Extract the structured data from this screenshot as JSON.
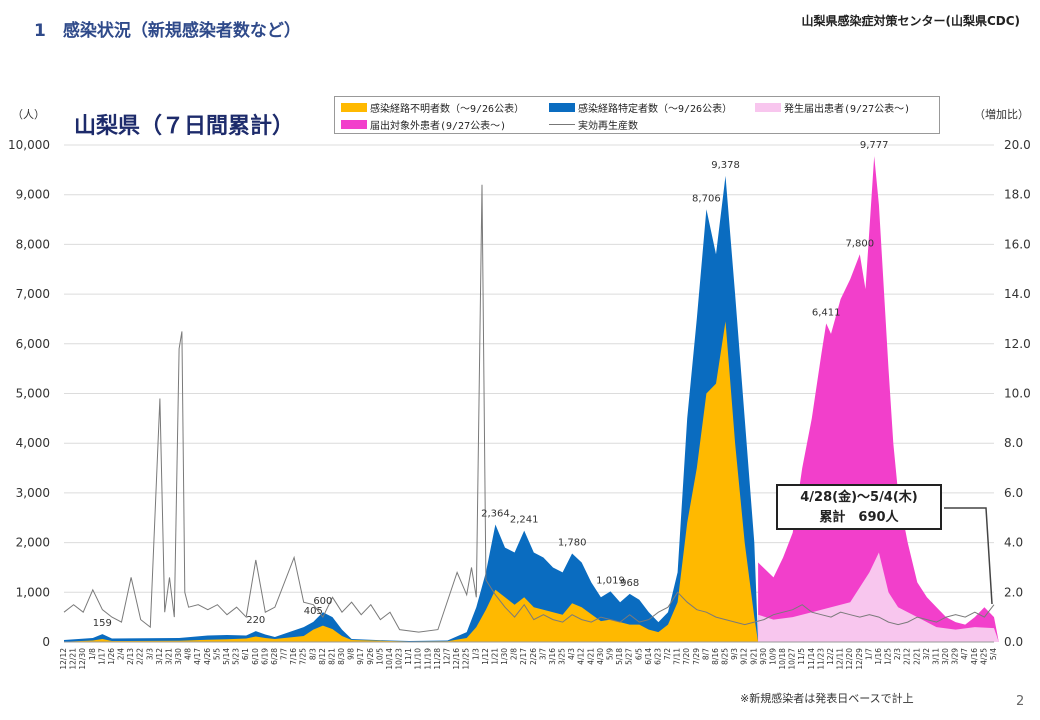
{
  "header": {
    "slide_title": "1　感染状況（新規感染者数など）",
    "organization": "山梨県感染症対策センター(山梨県CDC)",
    "page_number": "2",
    "footnote": "※新規感染者は発表日ベースで計上"
  },
  "callout": {
    "line1": "4/28(金)～5/4(木)",
    "line2": "累計　690人"
  },
  "colors": {
    "unknown": "#ffb900",
    "known": "#0a6cc0",
    "report": "#f8c6ee",
    "exempt": "#f23fcb",
    "rt": "#7a7a7a"
  },
  "chart_data": {
    "type": "area",
    "title": "山梨県（７日間累計）",
    "ylabel": "（人）",
    "y2label": "（増加比）",
    "ylim": [
      0,
      10000
    ],
    "yticks": [
      0,
      1000,
      2000,
      3000,
      4000,
      5000,
      6000,
      7000,
      8000,
      9000,
      10000
    ],
    "ytick_labels": [
      "0",
      "1,000",
      "2,000",
      "3,000",
      "4,000",
      "5,000",
      "6,000",
      "7,000",
      "8,000",
      "9,000",
      "10,000"
    ],
    "y2lim": [
      0,
      20
    ],
    "y2ticks": [
      0,
      2,
      4,
      6,
      8,
      10,
      12,
      14,
      16,
      18,
      20
    ],
    "y2tick_labels": [
      "0.0",
      "2.0",
      "4.0",
      "6.0",
      "8.0",
      "10.0",
      "12.0",
      "14.0",
      "16.0",
      "18.0",
      "20.0"
    ],
    "grid": true,
    "legend_position": "top",
    "x_labels": [
      "12/12",
      "12/21",
      "12/30",
      "1/8",
      "1/17",
      "1/26",
      "2/4",
      "2/13",
      "2/22",
      "3/3",
      "3/12",
      "3/21",
      "3/30",
      "4/8",
      "4/17",
      "4/26",
      "5/5",
      "5/14",
      "5/23",
      "6/1",
      "6/10",
      "6/19",
      "6/28",
      "7/7",
      "7/16",
      "7/25",
      "8/3",
      "8/12",
      "8/21",
      "8/30",
      "9/8",
      "9/17",
      "9/26",
      "10/5",
      "10/14",
      "10/23",
      "11/1",
      "11/10",
      "11/19",
      "11/28",
      "12/7",
      "12/16",
      "12/25",
      "1/3",
      "1/12",
      "1/21",
      "1/30",
      "2/8",
      "2/17",
      "2/26",
      "3/7",
      "3/16",
      "3/25",
      "4/3",
      "4/12",
      "4/21",
      "4/30",
      "5/9",
      "5/18",
      "5/27",
      "6/5",
      "6/14",
      "6/23",
      "7/2",
      "7/11",
      "7/20",
      "7/29",
      "8/7",
      "8/16",
      "8/25",
      "9/3",
      "9/12",
      "9/21",
      "9/30",
      "10/9",
      "10/18",
      "10/27",
      "11/5",
      "11/14",
      "11/23",
      "12/2",
      "12/11",
      "12/20",
      "12/29",
      "1/7",
      "1/16",
      "1/25",
      "2/3",
      "2/12",
      "2/21",
      "3/2",
      "3/11",
      "3/20",
      "3/29",
      "4/7",
      "4/16",
      "4/25",
      "5/4"
    ],
    "series": [
      {
        "name": "感染経路不明者数（～9/26公表）",
        "points": [
          [
            0,
            5
          ],
          [
            3,
            30
          ],
          [
            4,
            60
          ],
          [
            5,
            20
          ],
          [
            12,
            25
          ],
          [
            15,
            45
          ],
          [
            17,
            55
          ],
          [
            19,
            70
          ],
          [
            20,
            110
          ],
          [
            21,
            80
          ],
          [
            22,
            60
          ],
          [
            25,
            120
          ],
          [
            26,
            250
          ],
          [
            27,
            330
          ],
          [
            28,
            260
          ],
          [
            29,
            120
          ],
          [
            30,
            40
          ],
          [
            34,
            20
          ],
          [
            36,
            10
          ],
          [
            40,
            15
          ],
          [
            42,
            80
          ],
          [
            43,
            300
          ],
          [
            44,
            650
          ],
          [
            45,
            1050
          ],
          [
            46,
            900
          ],
          [
            47,
            750
          ],
          [
            48,
            900
          ],
          [
            49,
            700
          ],
          [
            50,
            650
          ],
          [
            51,
            600
          ],
          [
            52,
            550
          ],
          [
            53,
            780
          ],
          [
            54,
            700
          ],
          [
            55,
            560
          ],
          [
            56,
            420
          ],
          [
            57,
            450
          ],
          [
            58,
            400
          ],
          [
            59,
            350
          ],
          [
            60,
            350
          ],
          [
            61,
            250
          ],
          [
            62,
            200
          ],
          [
            63,
            350
          ],
          [
            64,
            800
          ],
          [
            65,
            2400
          ],
          [
            66,
            3500
          ],
          [
            67,
            5000
          ],
          [
            68,
            5200
          ],
          [
            69,
            6450
          ],
          [
            70,
            4000
          ],
          [
            71,
            2000
          ],
          [
            72,
            500
          ],
          [
            72.4,
            0
          ]
        ]
      },
      {
        "name": "感染経路特定者数（～9/26公表）",
        "points": [
          [
            0,
            40
          ],
          [
            3,
            80
          ],
          [
            4,
            159
          ],
          [
            5,
            70
          ],
          [
            12,
            80
          ],
          [
            15,
            130
          ],
          [
            17,
            140
          ],
          [
            19,
            130
          ],
          [
            20,
            220
          ],
          [
            21,
            150
          ],
          [
            22,
            100
          ],
          [
            25,
            300
          ],
          [
            26,
            405
          ],
          [
            27,
            600
          ],
          [
            28,
            500
          ],
          [
            29,
            250
          ],
          [
            30,
            60
          ],
          [
            34,
            30
          ],
          [
            36,
            20
          ],
          [
            40,
            30
          ],
          [
            42,
            200
          ],
          [
            43,
            700
          ],
          [
            44,
            1400
          ],
          [
            45,
            2364
          ],
          [
            46,
            1900
          ],
          [
            47,
            1800
          ],
          [
            48,
            2241
          ],
          [
            49,
            1800
          ],
          [
            50,
            1700
          ],
          [
            51,
            1500
          ],
          [
            52,
            1400
          ],
          [
            53,
            1780
          ],
          [
            54,
            1600
          ],
          [
            55,
            1200
          ],
          [
            56,
            900
          ],
          [
            57,
            1019
          ],
          [
            58,
            800
          ],
          [
            59,
            968
          ],
          [
            60,
            850
          ],
          [
            61,
            600
          ],
          [
            62,
            400
          ],
          [
            63,
            600
          ],
          [
            64,
            1400
          ],
          [
            65,
            4500
          ],
          [
            66,
            6500
          ],
          [
            67,
            8706
          ],
          [
            68,
            7800
          ],
          [
            69,
            9378
          ],
          [
            70,
            7000
          ],
          [
            71,
            4500
          ],
          [
            72,
            2000
          ],
          [
            72.4,
            0
          ]
        ]
      },
      {
        "name": "発生届出患者(9/27公表～)",
        "points": [
          [
            72.4,
            0
          ],
          [
            72.4,
            550
          ],
          [
            74,
            450
          ],
          [
            76,
            500
          ],
          [
            78,
            600
          ],
          [
            80,
            700
          ],
          [
            82,
            800
          ],
          [
            84,
            1400
          ],
          [
            85,
            1800
          ],
          [
            86,
            1000
          ],
          [
            87,
            700
          ],
          [
            89,
            500
          ],
          [
            91,
            300
          ],
          [
            93,
            250
          ],
          [
            95,
            300
          ],
          [
            97,
            280
          ],
          [
            97.5,
            0
          ]
        ]
      },
      {
        "name": "届出対象外患者(9/27公表～)",
        "points": [
          [
            72.4,
            0
          ],
          [
            72.4,
            1600
          ],
          [
            74,
            1300
          ],
          [
            75,
            1700
          ],
          [
            76,
            2200
          ],
          [
            77,
            3500
          ],
          [
            78,
            4500
          ],
          [
            79,
            5800
          ],
          [
            79.5,
            6411
          ],
          [
            80,
            6200
          ],
          [
            81,
            6900
          ],
          [
            82,
            7300
          ],
          [
            83,
            7800
          ],
          [
            83.6,
            7100
          ],
          [
            84.5,
            9777
          ],
          [
            85,
            8800
          ],
          [
            86,
            5500
          ],
          [
            86.5,
            4000
          ],
          [
            87,
            3000
          ],
          [
            88,
            2000
          ],
          [
            89,
            1200
          ],
          [
            90,
            900
          ],
          [
            91,
            700
          ],
          [
            92,
            500
          ],
          [
            93,
            400
          ],
          [
            94,
            350
          ],
          [
            95,
            500
          ],
          [
            96,
            700
          ],
          [
            97,
            500
          ],
          [
            97.5,
            0
          ]
        ]
      },
      {
        "name": "実効再生産数",
        "points": [
          [
            0,
            1.2
          ],
          [
            1,
            1.5
          ],
          [
            2,
            1.2
          ],
          [
            3,
            2.1
          ],
          [
            4,
            1.3
          ],
          [
            5,
            1.0
          ],
          [
            6,
            0.8
          ],
          [
            7,
            2.6
          ],
          [
            8,
            0.9
          ],
          [
            9,
            0.6
          ],
          [
            10,
            9.8
          ],
          [
            10.5,
            1.2
          ],
          [
            11,
            2.6
          ],
          [
            11.5,
            1.0
          ],
          [
            12,
            11.8
          ],
          [
            12.3,
            12.5
          ],
          [
            12.6,
            2.0
          ],
          [
            13,
            1.4
          ],
          [
            14,
            1.5
          ],
          [
            15,
            1.3
          ],
          [
            16,
            1.5
          ],
          [
            17,
            1.1
          ],
          [
            18,
            1.4
          ],
          [
            19,
            1.0
          ],
          [
            20,
            3.3
          ],
          [
            21,
            1.2
          ],
          [
            22,
            1.4
          ],
          [
            24,
            3.4
          ],
          [
            25,
            1.6
          ],
          [
            26,
            1.5
          ],
          [
            27,
            1.0
          ],
          [
            28,
            1.8
          ],
          [
            29,
            1.2
          ],
          [
            30,
            1.6
          ],
          [
            31,
            1.1
          ],
          [
            32,
            1.5
          ],
          [
            33,
            0.9
          ],
          [
            34,
            1.2
          ],
          [
            35,
            0.5
          ],
          [
            37,
            0.4
          ],
          [
            39,
            0.5
          ],
          [
            41,
            2.8
          ],
          [
            42,
            1.9
          ],
          [
            42.5,
            3.0
          ],
          [
            43,
            1.8
          ],
          [
            43.6,
            18.4
          ],
          [
            44,
            2.5
          ],
          [
            45,
            1.9
          ],
          [
            46,
            1.4
          ],
          [
            47,
            1.0
          ],
          [
            48,
            1.5
          ],
          [
            49,
            0.9
          ],
          [
            50,
            1.1
          ],
          [
            51,
            0.9
          ],
          [
            52,
            0.8
          ],
          [
            53,
            1.1
          ],
          [
            54,
            0.9
          ],
          [
            55,
            0.8
          ],
          [
            56,
            1.0
          ],
          [
            57,
            0.9
          ],
          [
            58,
            0.8
          ],
          [
            59,
            1.1
          ],
          [
            60,
            0.8
          ],
          [
            61,
            0.9
          ],
          [
            62,
            1.2
          ],
          [
            63,
            1.4
          ],
          [
            64,
            2.0
          ],
          [
            65,
            1.6
          ],
          [
            66,
            1.3
          ],
          [
            67,
            1.2
          ],
          [
            68,
            1.0
          ],
          [
            69,
            0.9
          ],
          [
            70,
            0.8
          ],
          [
            71,
            0.7
          ],
          [
            72,
            0.8
          ],
          [
            73,
            0.9
          ],
          [
            74,
            1.1
          ],
          [
            75,
            1.2
          ],
          [
            76,
            1.3
          ],
          [
            77,
            1.5
          ],
          [
            78,
            1.2
          ],
          [
            79,
            1.1
          ],
          [
            80,
            1.0
          ],
          [
            81,
            1.2
          ],
          [
            82,
            1.1
          ],
          [
            83,
            1.0
          ],
          [
            84,
            1.1
          ],
          [
            85,
            1.0
          ],
          [
            86,
            0.8
          ],
          [
            87,
            0.7
          ],
          [
            88,
            0.8
          ],
          [
            89,
            1.0
          ],
          [
            90,
            0.9
          ],
          [
            91,
            0.8
          ],
          [
            92,
            1.0
          ],
          [
            93,
            1.1
          ],
          [
            94,
            1.0
          ],
          [
            95,
            1.2
          ],
          [
            96,
            1.0
          ],
          [
            97,
            1.5
          ]
        ]
      }
    ],
    "annotations": [
      {
        "text": "159",
        "x": 4,
        "y": 159
      },
      {
        "text": "220",
        "x": 20,
        "y": 220
      },
      {
        "text": "405",
        "x": 26,
        "y": 405
      },
      {
        "text": "600",
        "x": 27,
        "y": 600
      },
      {
        "text": "2,364",
        "x": 45,
        "y": 2364
      },
      {
        "text": "2,241",
        "x": 48,
        "y": 2241
      },
      {
        "text": "1,780",
        "x": 53,
        "y": 1780
      },
      {
        "text": "1,019",
        "x": 57,
        "y": 1019
      },
      {
        "text": "968",
        "x": 59,
        "y": 968
      },
      {
        "text": "8,706",
        "x": 67,
        "y": 8706
      },
      {
        "text": "9,378",
        "x": 69,
        "y": 9378
      },
      {
        "text": "6,411",
        "x": 79.5,
        "y": 6411
      },
      {
        "text": "7,800",
        "x": 83,
        "y": 7800
      },
      {
        "text": "9,777",
        "x": 84.5,
        "y": 9777
      }
    ]
  }
}
